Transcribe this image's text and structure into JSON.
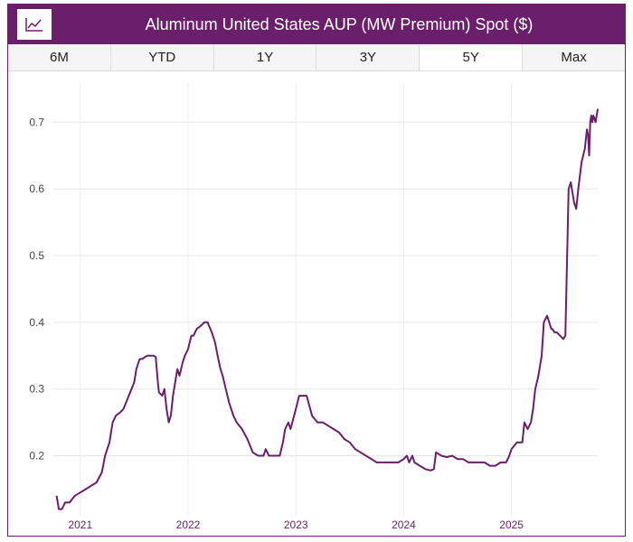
{
  "header": {
    "title": "Aluminum United States AUP (MW Premium) Spot ($)",
    "icon": "line-chart-icon",
    "color": "#6a1f6a"
  },
  "tabs": [
    {
      "label": "6M",
      "active": false
    },
    {
      "label": "YTD",
      "active": false
    },
    {
      "label": "1Y",
      "active": false
    },
    {
      "label": "3Y",
      "active": false
    },
    {
      "label": "5Y",
      "active": true
    },
    {
      "label": "Max",
      "active": false
    }
  ],
  "chart_data": {
    "type": "line",
    "title": "",
    "xlabel": "",
    "ylabel": "",
    "xlim": [
      2020.75,
      2025.8
    ],
    "ylim": [
      0.11,
      0.76
    ],
    "grid": true,
    "line_color": "#6a1f6a",
    "x_ticks": [
      2021,
      2022,
      2023,
      2024,
      2025
    ],
    "x_tick_labels": [
      "2021",
      "2022",
      "2023",
      "2024",
      "2025"
    ],
    "y_ticks": [
      0.2,
      0.3,
      0.4,
      0.5,
      0.6,
      0.7
    ],
    "y_tick_labels": [
      "0.2",
      "0.3",
      "0.4",
      "0.5",
      "0.6",
      "0.7"
    ],
    "series": [
      {
        "x": [
          2020.78,
          2020.79,
          2020.8,
          2020.83,
          2020.86,
          2020.9,
          2020.95,
          2021.0,
          2021.05,
          2021.1,
          2021.15,
          2021.2,
          2021.23,
          2021.27,
          2021.3,
          2021.33,
          2021.37,
          2021.4,
          2021.45,
          2021.5,
          2021.52,
          2021.55,
          2021.57,
          2021.62,
          2021.65,
          2021.68,
          2021.7,
          2021.72,
          2021.73,
          2021.76,
          2021.78,
          2021.8,
          2021.82,
          2021.84,
          2021.86,
          2021.88,
          2021.9,
          2021.92,
          2021.95,
          2021.97,
          2022.0,
          2022.03,
          2022.05,
          2022.08,
          2022.12,
          2022.15,
          2022.18,
          2022.22,
          2022.25,
          2022.28,
          2022.3,
          2022.32,
          2022.35,
          2022.38,
          2022.42,
          2022.45,
          2022.5,
          2022.55,
          2022.6,
          2022.65,
          2022.7,
          2022.72,
          2022.75,
          2022.8,
          2022.85,
          2022.88,
          2022.9,
          2022.93,
          2022.95,
          2023.0,
          2023.03,
          2023.05,
          2023.08,
          2023.1,
          2023.15,
          2023.2,
          2023.25,
          2023.3,
          2023.35,
          2023.4,
          2023.45,
          2023.5,
          2023.55,
          2023.6,
          2023.65,
          2023.7,
          2023.75,
          2023.8,
          2023.85,
          2023.9,
          2023.95,
          2024.0,
          2024.03,
          2024.05,
          2024.08,
          2024.1,
          2024.15,
          2024.2,
          2024.25,
          2024.28,
          2024.3,
          2024.35,
          2024.4,
          2024.45,
          2024.5,
          2024.55,
          2024.6,
          2024.65,
          2024.7,
          2024.75,
          2024.8,
          2024.85,
          2024.9,
          2024.95,
          2024.98,
          2025.0,
          2025.05,
          2025.08,
          2025.1,
          2025.12,
          2025.15,
          2025.18,
          2025.2,
          2025.22,
          2025.25,
          2025.28,
          2025.3,
          2025.33,
          2025.37,
          2025.38,
          2025.4,
          2025.42,
          2025.45,
          2025.48,
          2025.5,
          2025.53,
          2025.55,
          2025.58,
          2025.6,
          2025.62,
          2025.65,
          2025.68,
          2025.7
        ],
        "y": [
          0.14,
          0.13,
          0.12,
          0.12,
          0.13,
          0.13,
          0.14,
          0.145,
          0.15,
          0.155,
          0.16,
          0.175,
          0.2,
          0.22,
          0.25,
          0.26,
          0.265,
          0.27,
          0.29,
          0.31,
          0.33,
          0.345,
          0.345,
          0.35,
          0.35,
          0.35,
          0.348,
          0.31,
          0.295,
          0.29,
          0.3,
          0.27,
          0.25,
          0.26,
          0.29,
          0.31,
          0.33,
          0.32,
          0.34,
          0.35,
          0.36,
          0.38,
          0.38,
          0.39,
          0.395,
          0.4,
          0.4,
          0.385,
          0.37,
          0.345,
          0.33,
          0.32,
          0.3,
          0.28,
          0.26,
          0.25,
          0.24,
          0.225,
          0.205,
          0.2,
          0.2,
          0.21,
          0.2,
          0.2,
          0.2,
          0.22,
          0.24,
          0.25,
          0.24,
          0.27,
          0.29,
          0.29,
          0.29,
          0.29,
          0.26,
          0.25,
          0.25,
          0.245,
          0.24,
          0.235,
          0.225,
          0.22,
          0.21,
          0.205,
          0.2,
          0.195,
          0.19,
          0.19,
          0.19,
          0.19,
          0.19,
          0.195,
          0.2,
          0.19,
          0.2,
          0.19,
          0.185,
          0.18,
          0.178,
          0.18,
          0.205,
          0.2,
          0.198,
          0.2,
          0.195,
          0.195,
          0.19,
          0.19,
          0.19,
          0.19,
          0.185,
          0.185,
          0.19,
          0.19,
          0.2,
          0.21,
          0.22,
          0.22,
          0.22,
          0.25,
          0.24,
          0.25,
          0.27,
          0.3,
          0.32,
          0.35,
          0.4,
          0.41,
          0.39,
          0.39,
          0.385,
          0.385,
          0.38,
          0.375,
          0.38,
          0.6,
          0.61,
          0.58,
          0.57,
          0.6,
          0.64,
          0.66,
          0.69
        ]
      },
      {
        "x": [
          2025.7,
          2025.71,
          2025.72,
          2025.73,
          2025.74,
          2025.75,
          2025.76,
          2025.78,
          2025.8
        ],
        "y": [
          0.69,
          0.68,
          0.65,
          0.7,
          0.71,
          0.7,
          0.71,
          0.7,
          0.72
        ]
      }
    ]
  }
}
